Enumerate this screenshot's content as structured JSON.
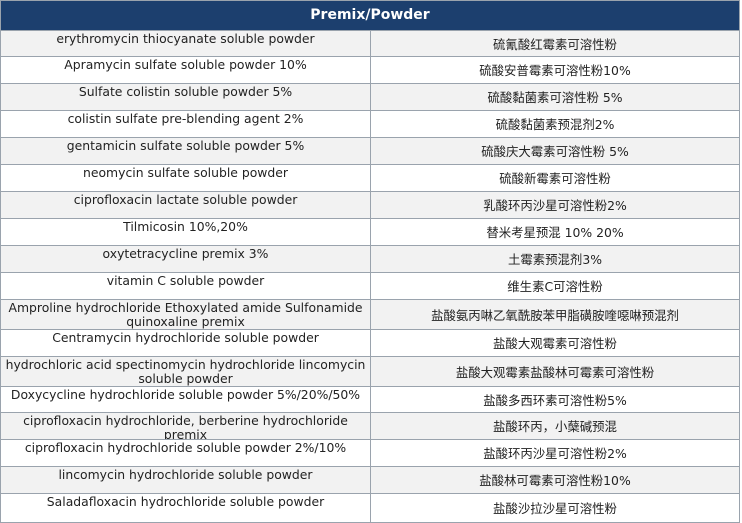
{
  "title": "Premix/Powder",
  "rows": [
    {
      "en": "erythromycin thiocyanate soluble powder",
      "zh": "硫氰酸红霉素可溶性粉"
    },
    {
      "en": "Apramycin sulfate soluble powder 10%",
      "zh": "硫酸安普霉素可溶性粉10%"
    },
    {
      "en": "Sulfate colistin soluble powder 5%",
      "zh": "硫酸黏菌素可溶性粉 5%"
    },
    {
      "en": "colistin sulfate pre-blending agent 2%",
      "zh": "硫酸黏菌素预混剂2%"
    },
    {
      "en": "gentamicin sulfate soluble powder 5%",
      "zh": "硫酸庆大霉素可溶性粉 5%"
    },
    {
      "en": "neomycin sulfate soluble powder",
      "zh": "硫酸新霉素可溶性粉"
    },
    {
      "en": "ciprofloxacin lactate soluble powder",
      "zh": "乳酸环丙沙星可溶性粉2%"
    },
    {
      "en": "Tilmicosin 10%,20%",
      "zh": "替米考星预混 10% 20%"
    },
    {
      "en": "oxytetracycline premix 3%",
      "zh": "土霉素预混剂3%"
    },
    {
      "en": "vitamin C soluble powder",
      "zh": "维生素C可溶性粉"
    },
    {
      "en": "Amproline hydrochloride Ethoxylated amide Sulfonamide quinoxaline premix",
      "zh": "盐酸氨丙啉乙氧酰胺苯甲脂磺胺喹噁啉预混剂"
    },
    {
      "en": "Centramycin hydrochloride soluble powder",
      "zh": "盐酸大观霉素可溶性粉"
    },
    {
      "en": "hydrochloric acid spectinomycin hydrochloride lincomycin soluble powder",
      "zh": "盐酸大观霉素盐酸林可霉素可溶性粉"
    },
    {
      "en": "Doxycycline hydrochloride soluble powder 5%/20%/50%",
      "zh": "盐酸多西环素可溶性粉5%"
    },
    {
      "en": "ciprofloxacin hydrochloride, berberine hydrochloride premix",
      "zh": "盐酸环丙，小蘖碱预混"
    },
    {
      "en": "ciprofloxacin hydrochloride soluble powder 2%/10%",
      "zh": "盐酸环丙沙星可溶性粉2%"
    },
    {
      "en": "lincomycin hydrochloride soluble powder",
      "zh": "盐酸林可霉素可溶性粉10%"
    },
    {
      "en": "Saladafloxacin hydrochloride soluble powder",
      "zh": "盐酸沙拉沙星可溶性粉"
    }
  ]
}
